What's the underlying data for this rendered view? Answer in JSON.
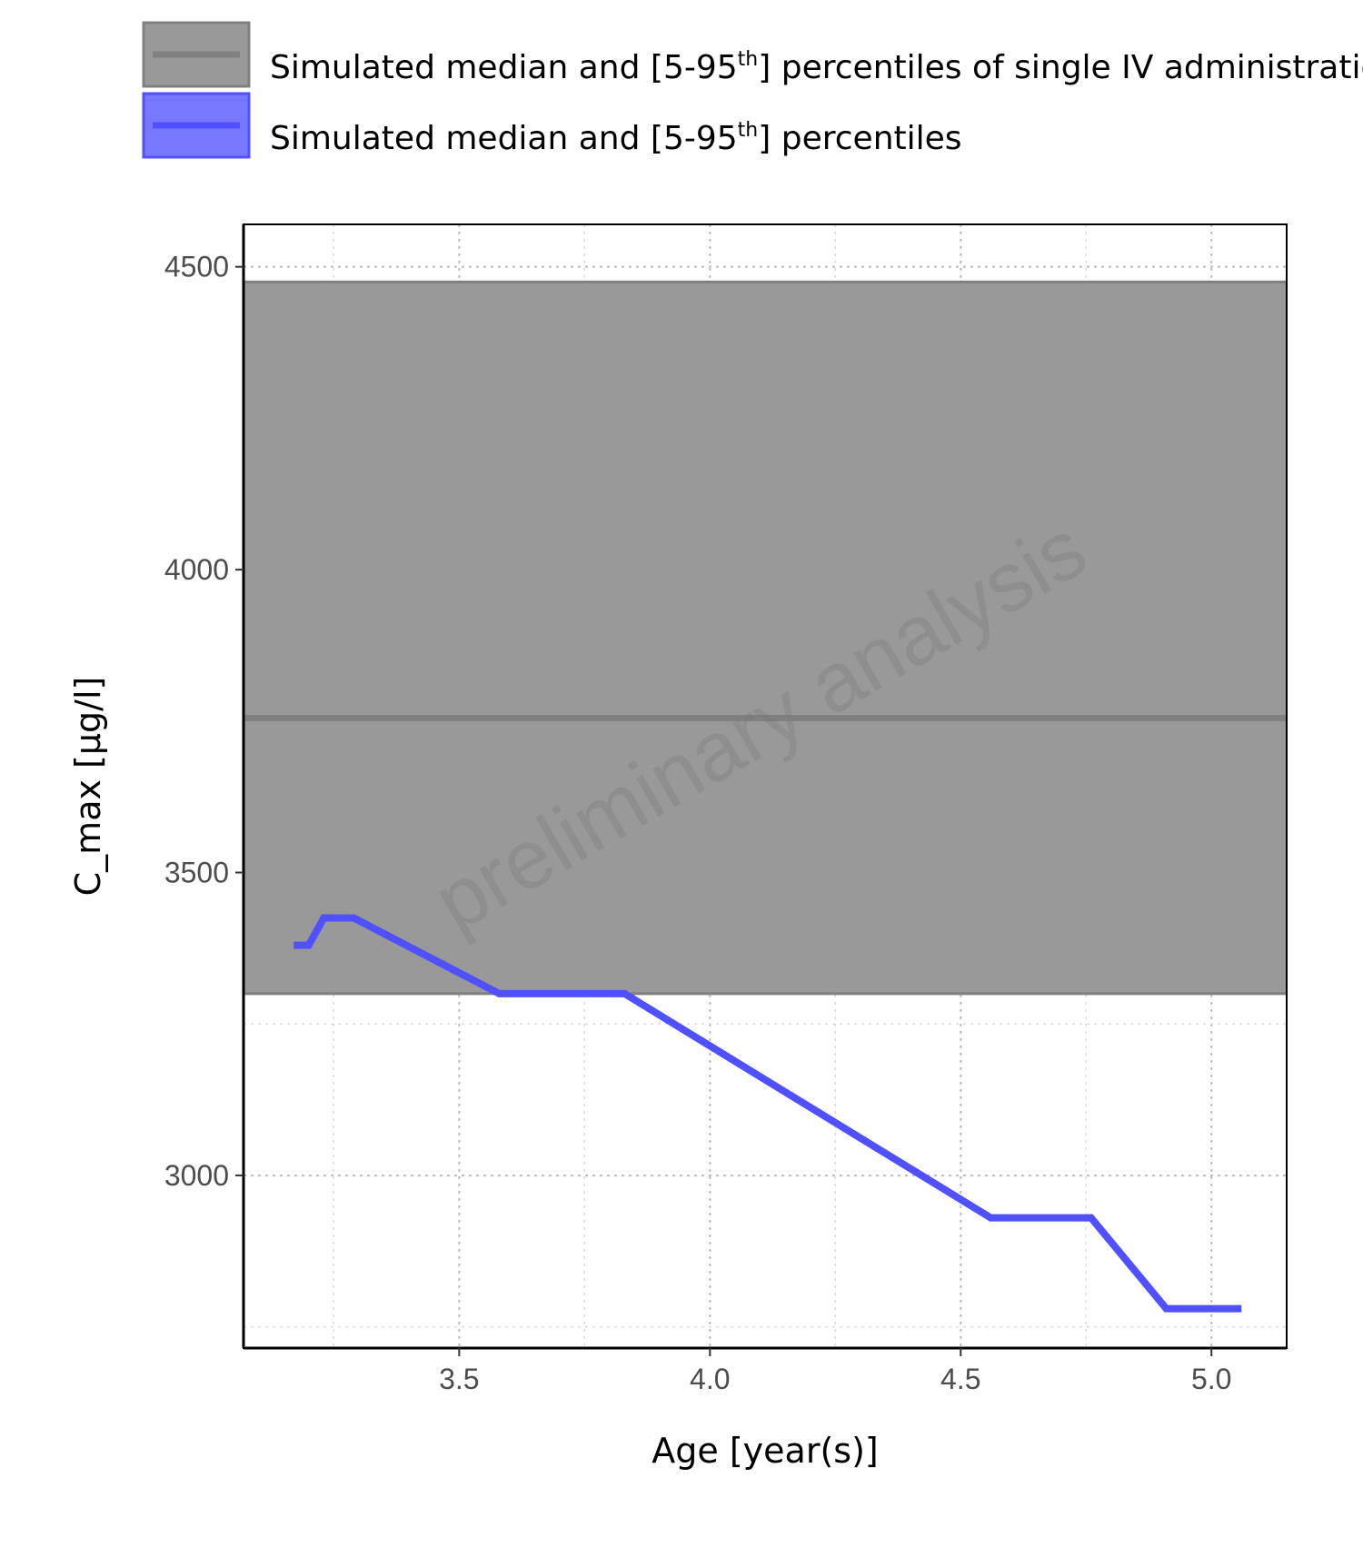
{
  "chart_data": {
    "type": "line",
    "title": "",
    "xlabel": "Age [year(s)]",
    "ylabel": "C_max [µg/l]",
    "xlim": [
      3.07,
      5.15
    ],
    "ylim": [
      2715,
      4570
    ],
    "x_ticks": [
      3.5,
      4.0,
      4.5,
      5.0
    ],
    "x_tick_labels": [
      "3.5",
      "4.0",
      "4.5",
      "5.0"
    ],
    "y_ticks": [
      3000,
      3500,
      4000,
      4500
    ],
    "y_tick_labels": [
      "3000",
      "3500",
      "4000",
      "4500"
    ],
    "grid": true,
    "watermark": "preliminary analysis",
    "legend_position": "top",
    "legend": [
      {
        "label_pre": "Simulated median and [5-95",
        "label_sup": "th",
        "label_post": "] percentiles of single IV administration",
        "color": "#808080",
        "fill": "#999999"
      },
      {
        "label_pre": "Simulated median and [5-95",
        "label_sup": "th",
        "label_post": "] percentiles",
        "color": "#5050ff",
        "fill": "#7878ff"
      }
    ],
    "reference_band": {
      "median": 3755,
      "p5": 3300,
      "p95": 4475,
      "color": "#808080",
      "fill": "#999999"
    },
    "series": [
      {
        "x": [
          3.17,
          3.2,
          3.23,
          3.29,
          3.58,
          3.83,
          4.56,
          4.76,
          4.91,
          5.06
        ],
        "values": [
          3380,
          3380,
          3425,
          3425,
          3300,
          3300,
          2930,
          2930,
          2780,
          2780
        ],
        "color": "#5050ff"
      }
    ]
  }
}
